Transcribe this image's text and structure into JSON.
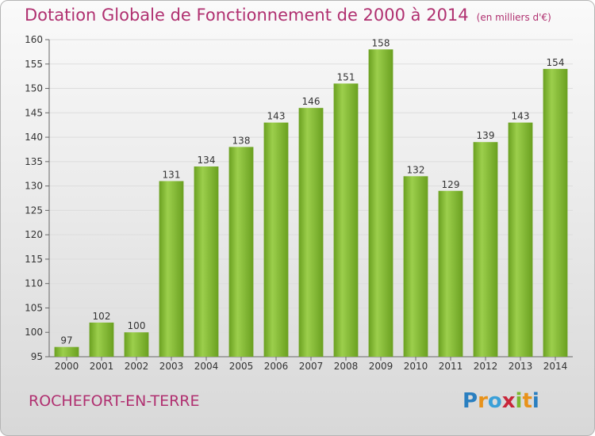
{
  "title": "Dotation Globale de Fonctionnement de 2000 à 2014",
  "subtitle": "(en milliers d'€)",
  "commune": "ROCHEFORT-EN-TERRE",
  "logo": {
    "letters": [
      "P",
      "r",
      "o",
      "x",
      "i",
      "t",
      "i"
    ],
    "colors": [
      "#2a7fc0",
      "#e8921a",
      "#3aa0d8",
      "#c8263a",
      "#7cb82f",
      "#e8921a",
      "#2a7fc0"
    ]
  },
  "colors": {
    "accent": "#b03070",
    "bar_light": "#9ccf4c",
    "bar_dark": "#6aa020"
  },
  "chart_data": {
    "type": "bar",
    "categories": [
      "2000",
      "2001",
      "2002",
      "2003",
      "2004",
      "2005",
      "2006",
      "2007",
      "2008",
      "2009",
      "2010",
      "2011",
      "2012",
      "2013",
      "2014"
    ],
    "values": [
      97,
      102,
      100,
      131,
      134,
      138,
      143,
      146,
      151,
      158,
      132,
      129,
      139,
      143,
      154
    ],
    "ylim": [
      95,
      160
    ],
    "yticks": [
      95,
      100,
      105,
      110,
      115,
      120,
      125,
      130,
      135,
      140,
      145,
      150,
      155,
      160
    ],
    "grid": true,
    "data_labels": true
  }
}
